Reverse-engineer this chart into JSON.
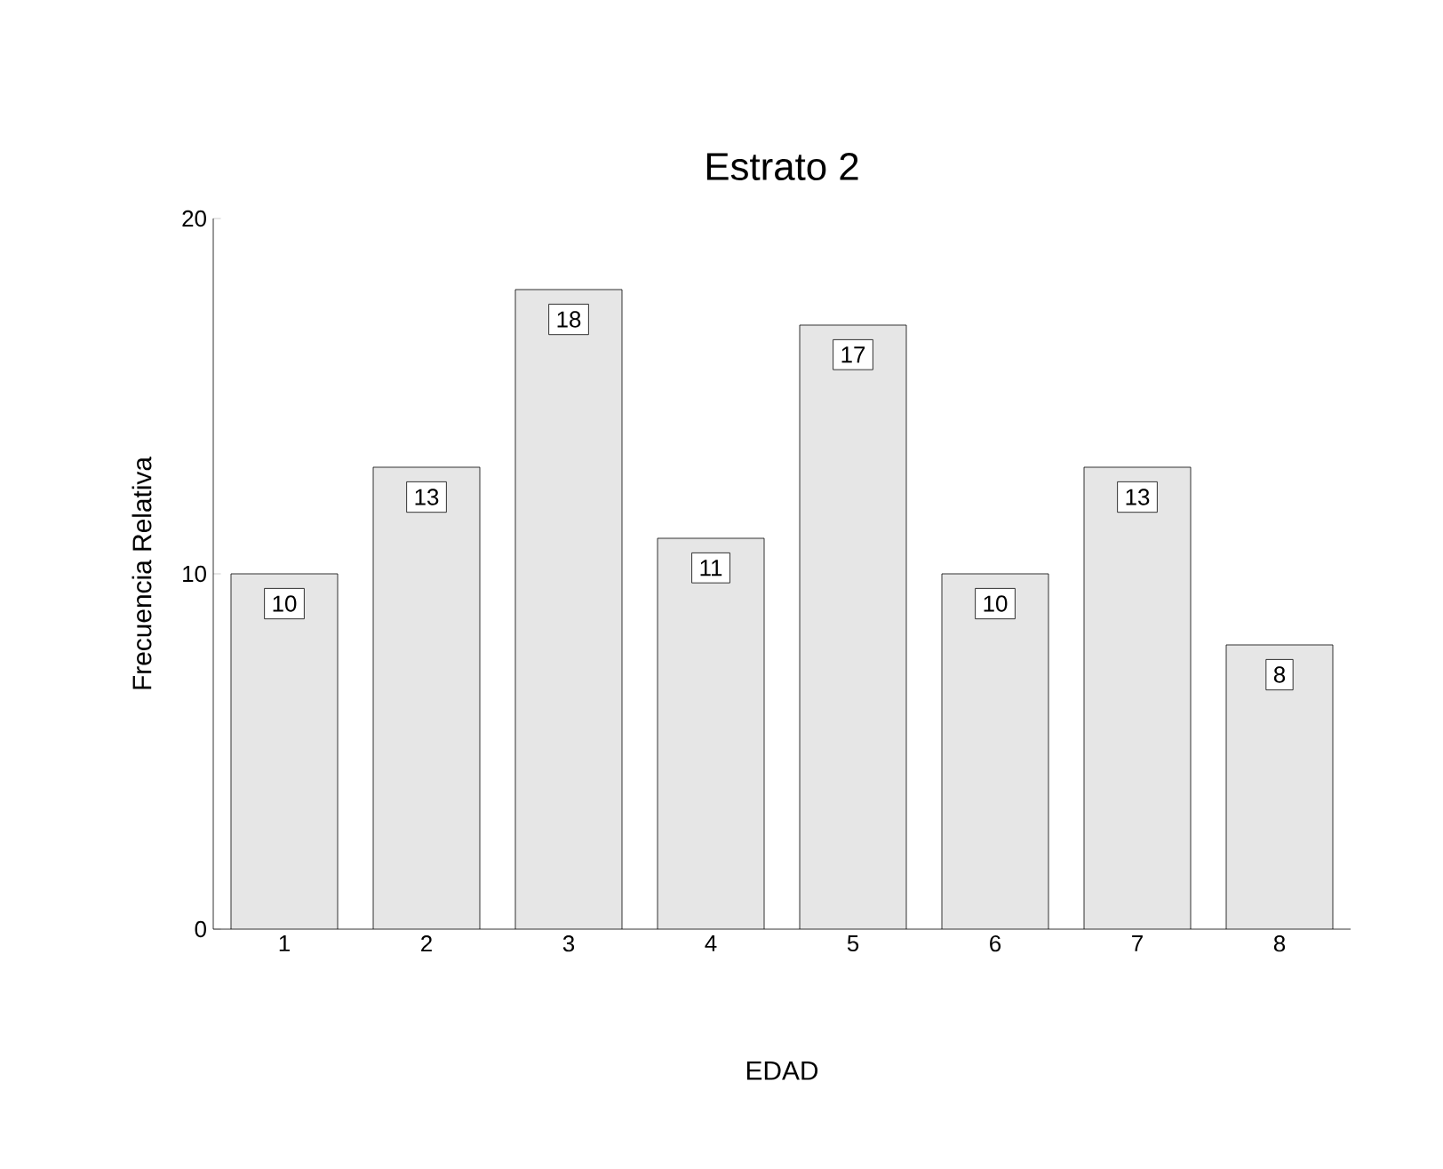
{
  "chart_data": {
    "type": "bar",
    "title": "Estrato 2",
    "xlabel": "EDAD",
    "ylabel": "Frecuencia Relativa",
    "categories": [
      "1",
      "2",
      "3",
      "4",
      "5",
      "6",
      "7",
      "8"
    ],
    "values": [
      10,
      13,
      18,
      11,
      17,
      10,
      13,
      8
    ],
    "color": "#e6e6e6",
    "ylim": [
      0,
      20
    ],
    "yticks": [
      0,
      10,
      20
    ],
    "data_labels": true
  }
}
